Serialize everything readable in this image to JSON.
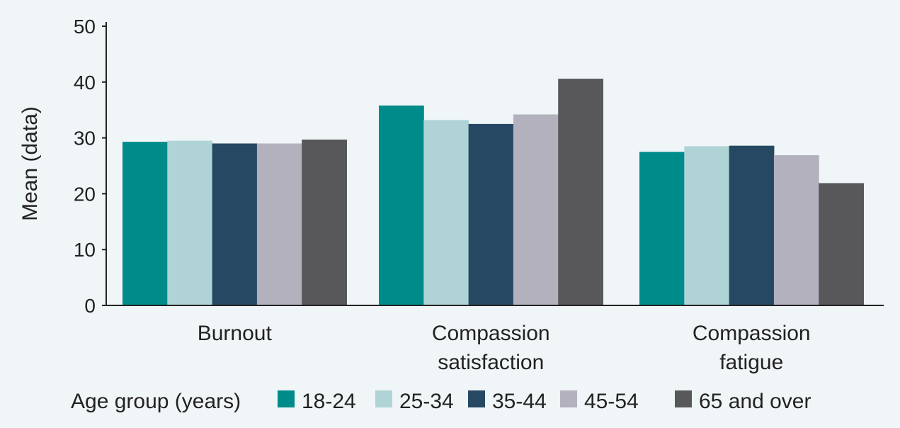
{
  "chart_data": {
    "type": "bar",
    "ylabel": "Mean (data)",
    "ylim": [
      0,
      50
    ],
    "yticks": [
      0,
      10,
      20,
      30,
      40,
      50
    ],
    "categories": [
      [
        "Burnout"
      ],
      [
        "Compassion",
        "satisfaction"
      ],
      [
        "Compassion",
        "fatigue"
      ]
    ],
    "legend_title": "Age group (years)",
    "series": [
      {
        "name": "18-24",
        "color": "#008b8b",
        "values": [
          29.3,
          35.8,
          27.5
        ]
      },
      {
        "name": "25-34",
        "color": "#b0d4d6",
        "values": [
          29.5,
          33.2,
          28.5
        ]
      },
      {
        "name": "35-44",
        "color": "#264862",
        "values": [
          29.0,
          32.5,
          28.6
        ]
      },
      {
        "name": "45-54",
        "color": "#b3b1bd",
        "values": [
          29.0,
          34.2,
          26.9
        ]
      },
      {
        "name": "65 and over",
        "color": "#58585a",
        "values": [
          29.7,
          40.6,
          21.9
        ]
      }
    ],
    "grid": false,
    "legend_position": "bottom"
  }
}
